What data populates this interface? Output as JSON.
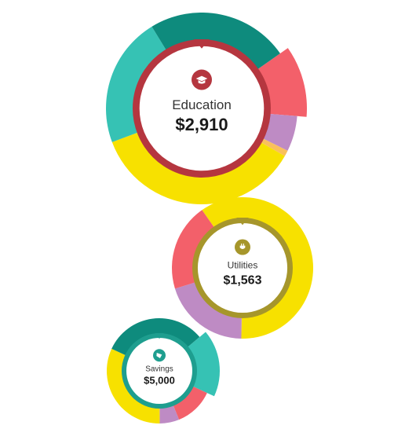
{
  "charts": [
    {
      "name": "Education",
      "amount": "$2,910",
      "icon": "graduation-cap-icon",
      "accent": "#B5363F",
      "segments": [
        {
          "color": "#F3606A",
          "value": 11,
          "highlight": true
        },
        {
          "color": "#BE8BC4",
          "value": 6
        },
        {
          "color": "#F9C05C",
          "value": 1
        },
        {
          "color": "#F7E100",
          "value": 36
        },
        {
          "color": "#36C2B4",
          "value": 22
        },
        {
          "color": "#0E8B7D",
          "value": 24
        }
      ]
    },
    {
      "name": "Utilities",
      "amount": "$1,563",
      "icon": "plug-icon",
      "accent": "#A6962B",
      "segments": [
        {
          "color": "#F7E100",
          "value": 60,
          "highlight": true
        },
        {
          "color": "#BE8BC4",
          "value": 20
        },
        {
          "color": "#F3606A",
          "value": 20
        }
      ]
    },
    {
      "name": "Savings",
      "amount": "$5,000",
      "icon": "piggy-bank-icon",
      "accent": "#1E9E8F",
      "segments": [
        {
          "color": "#36C2B4",
          "value": 18,
          "highlight": true
        },
        {
          "color": "#F3606A",
          "value": 12
        },
        {
          "color": "#BE8BC4",
          "value": 6
        },
        {
          "color": "#F7E100",
          "value": 32
        },
        {
          "color": "#0E8B7D",
          "value": 32
        }
      ]
    }
  ]
}
